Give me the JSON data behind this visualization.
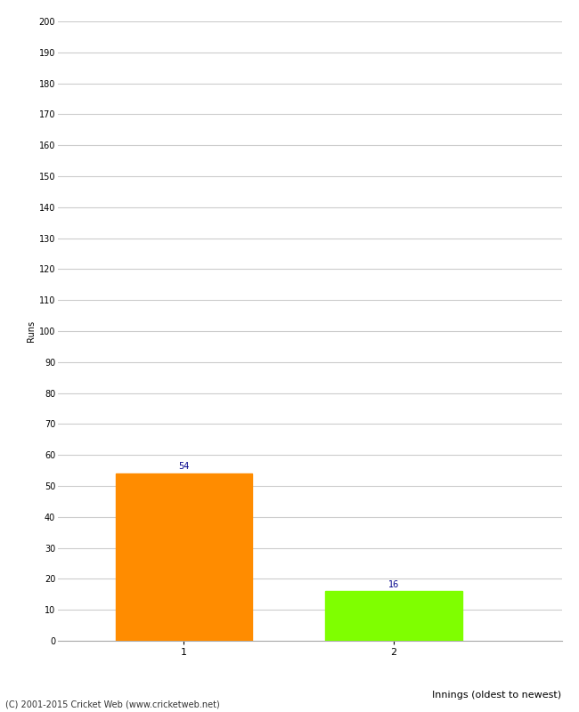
{
  "categories": [
    "1",
    "2"
  ],
  "values": [
    54,
    16
  ],
  "bar_colors": [
    "#FF8C00",
    "#7FFF00"
  ],
  "xlabel": "Innings (oldest to newest)",
  "ylabel": "Runs",
  "ylim": [
    0,
    200
  ],
  "yticks": [
    0,
    10,
    20,
    30,
    40,
    50,
    60,
    70,
    80,
    90,
    100,
    110,
    120,
    130,
    140,
    150,
    160,
    170,
    180,
    190,
    200
  ],
  "annotation_color": "#00008B",
  "annotation_fontsize": 7,
  "footer": "(C) 2001-2015 Cricket Web (www.cricketweb.net)",
  "background_color": "#ffffff",
  "bar_width": 0.65,
  "x_positions": [
    1,
    2
  ],
  "xlim": [
    0.4,
    2.8
  ]
}
